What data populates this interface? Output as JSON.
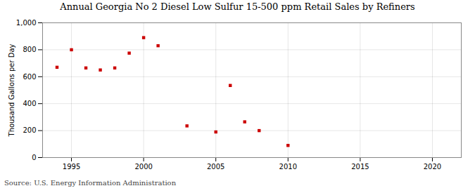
{
  "chart_data": {
    "type": "scatter",
    "title": "Annual Georgia No 2 Diesel Low Sulfur 15-500 ppm Retail Sales by Refiners",
    "ylabel": "Thousand Gallons per Day",
    "source": "Source: U.S. Energy Information Administration",
    "x": [
      1994,
      1995,
      1996,
      1997,
      1998,
      1999,
      2000,
      2001,
      2003,
      2005,
      2006,
      2007,
      2008,
      2010
    ],
    "values": [
      670,
      800,
      665,
      650,
      665,
      775,
      890,
      830,
      235,
      190,
      535,
      265,
      200,
      90
    ],
    "color": "#cc0000",
    "marker": "square",
    "xlim": [
      1993,
      2022
    ],
    "ylim": [
      0,
      1000
    ],
    "xticks": [
      1995,
      2000,
      2005,
      2010,
      2015,
      2020
    ],
    "yticks": [
      0,
      200,
      400,
      600,
      800,
      {
        "value": 1000,
        "label": "1,000"
      }
    ],
    "grid": true
  }
}
